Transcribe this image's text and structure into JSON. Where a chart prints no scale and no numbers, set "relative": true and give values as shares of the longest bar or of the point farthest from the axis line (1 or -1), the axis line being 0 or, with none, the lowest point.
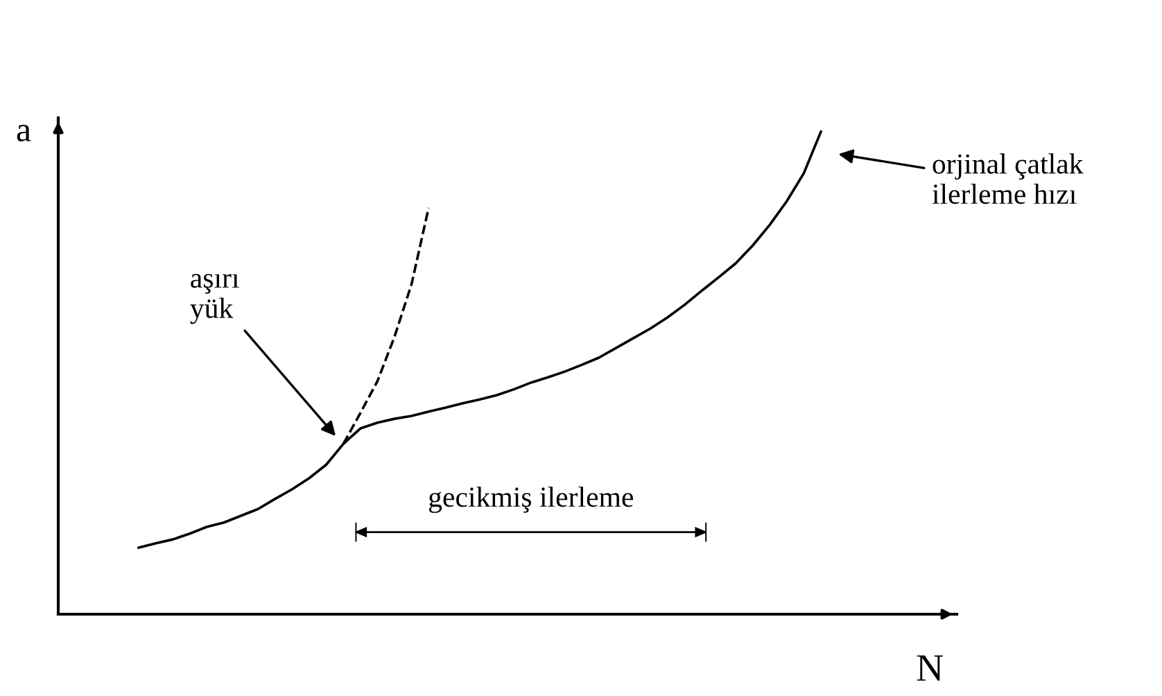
{
  "chart_data": {
    "type": "line",
    "relative": true,
    "xlabel": "N",
    "ylabel": "a",
    "legend": false,
    "marker": "none",
    "categories": [
      null,
      null,
      null,
      null,
      null,
      null,
      null,
      null,
      null,
      null,
      null,
      null,
      null,
      null,
      null,
      null,
      null,
      null,
      null,
      null,
      null,
      null,
      null,
      null,
      null,
      null,
      null,
      null,
      null,
      null,
      null,
      null,
      null,
      null,
      null,
      null,
      null,
      null,
      null,
      null,
      null
    ],
    "series": [
      {
        "color": "#000000",
        "line_style": "solid",
        "values": [
          0.138,
          0.147,
          0.155,
          0.167,
          0.181,
          0.19,
          0.204,
          0.218,
          0.239,
          0.259,
          0.282,
          0.31,
          0.353,
          0.385,
          0.397,
          0.405,
          0.411,
          0.42,
          0.428,
          0.437,
          0.445,
          0.454,
          0.466,
          0.48,
          0.491,
          0.503,
          0.517,
          0.532,
          0.552,
          0.572,
          0.592,
          0.615,
          0.641,
          0.67,
          0.698,
          0.727,
          0.764,
          0.807,
          0.856,
          0.914,
          1.0
        ]
      },
      {
        "color": "#000000",
        "line_style": "dashed",
        "values": [
          null,
          null,
          null,
          null,
          null,
          null,
          null,
          null,
          null,
          null,
          null,
          null,
          0.353,
          0.417,
          0.483,
          0.575,
          0.684,
          0.842,
          null,
          null,
          null,
          null,
          null,
          null,
          null,
          null,
          null,
          null,
          null,
          null,
          null,
          null,
          null,
          null,
          null,
          null,
          null,
          null,
          null,
          null,
          null
        ]
      }
    ],
    "annotations": [
      "aşırı\nyük",
      "orjinal çatlak\nilerleme hızı",
      "gecikmiş ilerleme"
    ]
  }
}
